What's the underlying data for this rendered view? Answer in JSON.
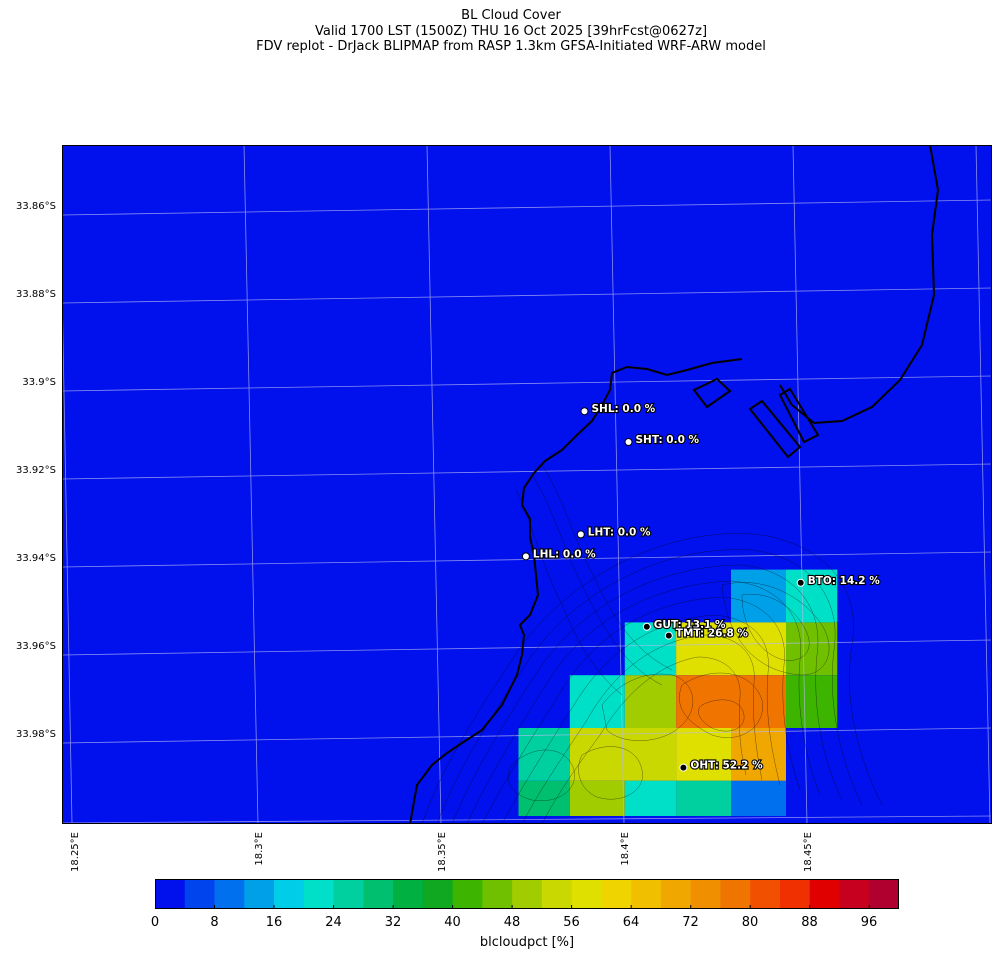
{
  "title": {
    "line1": "BL Cloud Cover",
    "line2": "Valid 1700 LST (1500Z) THU 16 Oct 2025 [39hrFcst@0627z]",
    "line3": "FDV replot - DrJack BLIPMAP from RASP 1.3km GFSA-Initiated WRF-ARW model"
  },
  "axes": {
    "lat_labels": [
      "33.86°S",
      "33.88°S",
      "33.9°S",
      "33.92°S",
      "33.94°S",
      "33.96°S",
      "33.98°S"
    ],
    "lon_labels": [
      "18.25°E",
      "18.3°E",
      "18.35°E",
      "18.4°E",
      "18.45°E"
    ]
  },
  "stations": [
    {
      "code": "SHL",
      "label": "SHL: 0.0 %",
      "value": 0.0,
      "lon": 18.39,
      "lat": -33.908
    },
    {
      "code": "SHT",
      "label": "SHT: 0.0 %",
      "value": 0.0,
      "lon": 18.402,
      "lat": -33.915
    },
    {
      "code": "LHT",
      "label": "LHT: 0.0 %",
      "value": 0.0,
      "lon": 18.389,
      "lat": -33.936
    },
    {
      "code": "LHL",
      "label": "LHL: 0.0 %",
      "value": 0.0,
      "lon": 18.374,
      "lat": -33.941
    },
    {
      "code": "BTO",
      "label": "BTO: 14.2 %",
      "value": 14.2,
      "lon": 18.449,
      "lat": -33.947
    },
    {
      "code": "GUT",
      "label": "GUT: 13.1 %",
      "value": 13.1,
      "lon": 18.407,
      "lat": -33.957
    },
    {
      "code": "TMT",
      "label": "TMT: 26.8 %",
      "value": 26.8,
      "lon": 18.413,
      "lat": -33.959
    },
    {
      "code": "OHT",
      "label": "OHT: 52.2 %",
      "value": 52.2,
      "lon": 18.417,
      "lat": -33.989
    }
  ],
  "grid_cells": [
    {
      "lon0": 18.43,
      "lon1": 18.445,
      "lat0": -33.944,
      "lat1": -33.956,
      "value": 12
    },
    {
      "lon0": 18.445,
      "lon1": 18.459,
      "lat0": -33.944,
      "lat1": -33.956,
      "value": 22
    },
    {
      "lon0": 18.401,
      "lon1": 18.415,
      "lat0": -33.956,
      "lat1": -33.968,
      "value": 22
    },
    {
      "lon0": 18.415,
      "lon1": 18.43,
      "lat0": -33.956,
      "lat1": -33.968,
      "value": 56
    },
    {
      "lon0": 18.43,
      "lon1": 18.445,
      "lat0": -33.956,
      "lat1": -33.968,
      "value": 58
    },
    {
      "lon0": 18.445,
      "lon1": 18.459,
      "lat0": -33.956,
      "lat1": -33.968,
      "value": 46
    },
    {
      "lon0": 18.386,
      "lon1": 18.401,
      "lat0": -33.968,
      "lat1": -33.98,
      "value": 22
    },
    {
      "lon0": 18.401,
      "lon1": 18.415,
      "lat0": -33.968,
      "lat1": -33.98,
      "value": 50
    },
    {
      "lon0": 18.415,
      "lon1": 18.445,
      "lat0": -33.968,
      "lat1": -33.98,
      "value": 76
    },
    {
      "lon0": 18.445,
      "lon1": 18.459,
      "lat0": -33.968,
      "lat1": -33.98,
      "value": 42
    },
    {
      "lon0": 18.372,
      "lon1": 18.386,
      "lat0": -33.98,
      "lat1": -33.992,
      "value": 26
    },
    {
      "lon0": 18.386,
      "lon1": 18.415,
      "lat0": -33.98,
      "lat1": -33.992,
      "value": 54
    },
    {
      "lon0": 18.415,
      "lon1": 18.43,
      "lat0": -33.98,
      "lat1": -33.992,
      "value": 56
    },
    {
      "lon0": 18.43,
      "lon1": 18.445,
      "lat0": -33.98,
      "lat1": -33.992,
      "value": 68
    },
    {
      "lon0": 18.372,
      "lon1": 18.386,
      "lat0": -33.992,
      "lat1": -34.0,
      "value": 30
    },
    {
      "lon0": 18.386,
      "lon1": 18.401,
      "lat0": -33.992,
      "lat1": -34.0,
      "value": 48
    },
    {
      "lon0": 18.401,
      "lon1": 18.415,
      "lat0": -33.992,
      "lat1": -34.0,
      "value": 20
    },
    {
      "lon0": 18.415,
      "lon1": 18.43,
      "lat0": -33.992,
      "lat1": -34.0,
      "value": 26
    },
    {
      "lon0": 18.43,
      "lon1": 18.445,
      "lat0": -33.992,
      "lat1": -34.0,
      "value": 8
    }
  ],
  "colorbar": {
    "label": "blcloudpct [%]",
    "ticks": [
      "0",
      "8",
      "16",
      "24",
      "32",
      "40",
      "48",
      "56",
      "64",
      "72",
      "80",
      "88",
      "96"
    ],
    "colors": [
      "#0011ee",
      "#0044ee",
      "#0070ee",
      "#00a0e8",
      "#00cde8",
      "#00e0c8",
      "#00d0a0",
      "#00c070",
      "#00b040",
      "#10a820",
      "#3cb400",
      "#70c000",
      "#a0cc00",
      "#c8d800",
      "#e0e000",
      "#f0d400",
      "#f0c000",
      "#f0a800",
      "#f09000",
      "#f07400",
      "#f05000",
      "#f03000",
      "#e00000",
      "#c80020",
      "#b00030"
    ]
  }
}
